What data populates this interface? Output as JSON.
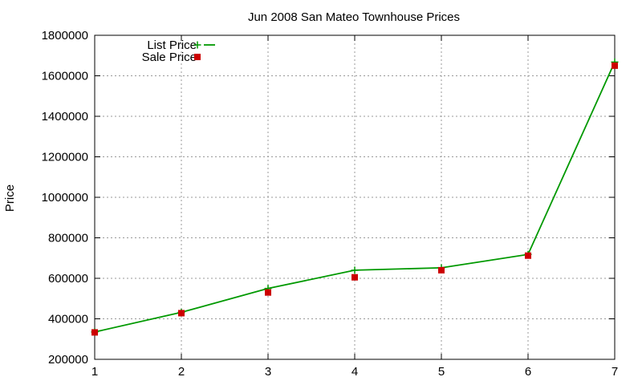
{
  "chart_data": {
    "type": "line",
    "title": "Jun 2008 San Mateo Townhouse Prices",
    "xlabel": "",
    "ylabel": "Price",
    "x": [
      1,
      2,
      3,
      4,
      5,
      6,
      7
    ],
    "xlim": [
      1,
      7
    ],
    "ylim": [
      200000,
      1800000
    ],
    "xticks": [
      "1",
      "2",
      "3",
      "4",
      "5",
      "6",
      "7"
    ],
    "yticks": [
      "200000",
      "400000",
      "600000",
      "800000",
      "1000000",
      "1200000",
      "1400000",
      "1600000",
      "1800000"
    ],
    "grid": true,
    "legend_position": "top-left",
    "series": [
      {
        "name": "List Price",
        "style": "line-with-plus-markers",
        "color": "#009900",
        "values": [
          335000,
          432000,
          550000,
          640000,
          652000,
          718000,
          1668000
        ]
      },
      {
        "name": "Sale Price",
        "style": "square-markers",
        "color": "#cc0000",
        "values": [
          333000,
          428000,
          530000,
          605000,
          640000,
          712000,
          1650000
        ]
      }
    ]
  }
}
